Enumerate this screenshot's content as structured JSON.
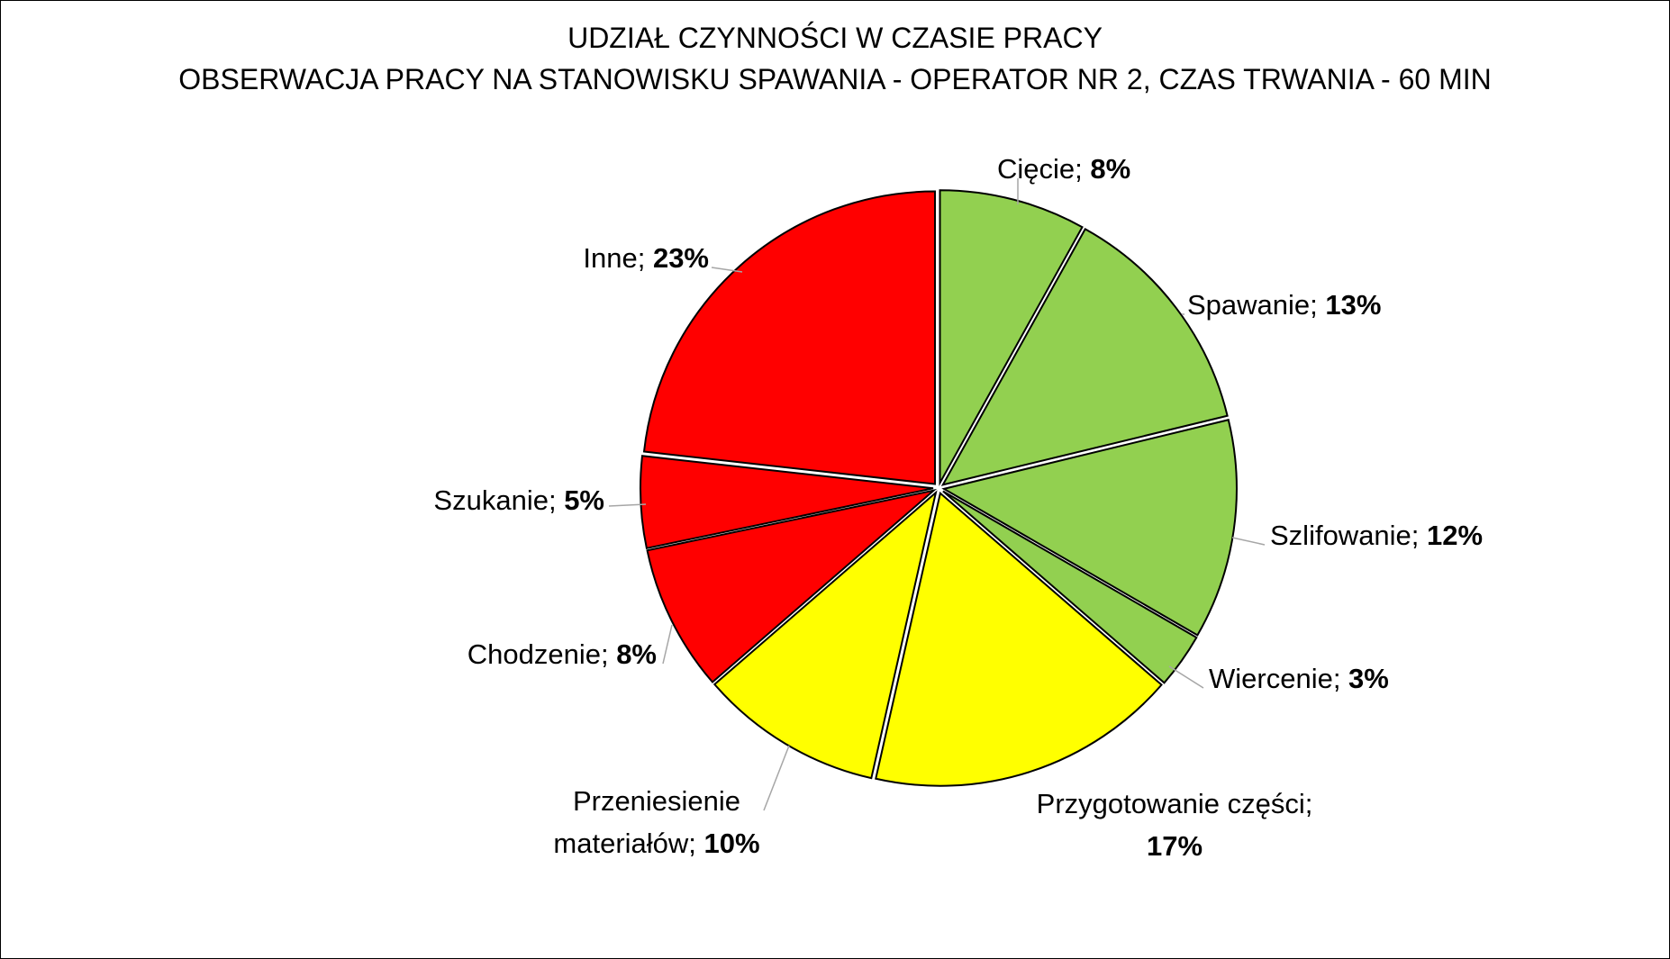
{
  "chart_data": {
    "type": "pie",
    "title": "UDZIAŁ CZYNNOŚCI W CZASIE PRACY",
    "subtitle": "OBSERWACJA PRACY NA STANOWISKU SPAWANIA - OPERATOR NR 2, CZAS TRWANIA - 60 MIN",
    "unit": "%",
    "slices": [
      {
        "label": "Cięcie",
        "value": 8,
        "color": "#92d050"
      },
      {
        "label": "Spawanie",
        "value": 13,
        "color": "#92d050"
      },
      {
        "label": "Szlifowanie",
        "value": 12,
        "color": "#92d050"
      },
      {
        "label": "Wiercenie",
        "value": 3,
        "color": "#92d050"
      },
      {
        "label": "Przygotowanie części",
        "value": 17,
        "color": "#ffff00"
      },
      {
        "label": "Przeniesienie materiałów",
        "value": 10,
        "color": "#ffff00"
      },
      {
        "label": "Chodzenie",
        "value": 8,
        "color": "#ff0000"
      },
      {
        "label": "Szukanie",
        "value": 5,
        "color": "#ff0000"
      },
      {
        "label": "Inne",
        "value": 23,
        "color": "#ff0000"
      }
    ],
    "legend": "none"
  }
}
